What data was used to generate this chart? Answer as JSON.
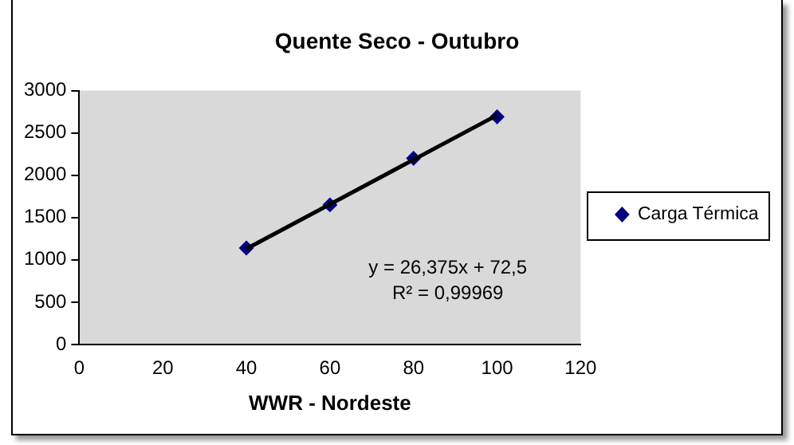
{
  "chart_data": {
    "type": "scatter",
    "title": "Quente Seco - Outubro",
    "xlabel": "WWR - Nordeste",
    "x": [
      40,
      60,
      80,
      100
    ],
    "series": [
      {
        "name": "Carga Térmica",
        "type": "scatter",
        "color": "#000080",
        "values": [
          1140,
          1650,
          2200,
          2690
        ],
        "marker": "diamond"
      },
      {
        "type": "line",
        "color": "#000000",
        "x": [
          40,
          100
        ],
        "values": [
          1130,
          2710
        ],
        "marker": "none"
      }
    ],
    "annotations": [
      "y = 26,375x + 72,5",
      "R² = 0,99969"
    ],
    "xlim": [
      0,
      120
    ],
    "xticks": [
      0,
      20,
      40,
      60,
      80,
      100,
      120
    ],
    "ylim": [
      0,
      3000
    ],
    "yticks": [
      0,
      500,
      1000,
      1500,
      2000,
      2500,
      3000
    ],
    "grid": false,
    "legend": "right"
  }
}
